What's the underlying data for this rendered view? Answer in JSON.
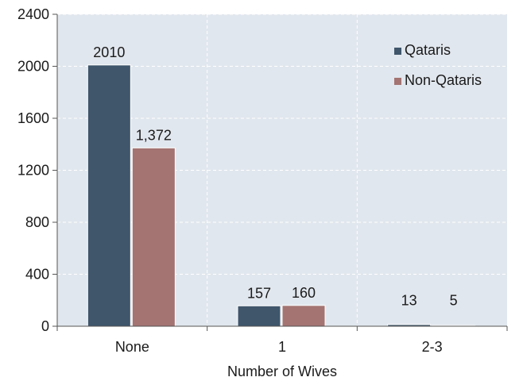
{
  "chart_data": {
    "type": "bar",
    "categories": [
      "None",
      "1",
      "2-3"
    ],
    "series": [
      {
        "name": "Qataris",
        "values": [
          2010,
          157,
          13
        ],
        "labels": [
          "2010",
          "157",
          "13"
        ],
        "color": "#3f566b"
      },
      {
        "name": "Non-Qataris",
        "values": [
          1372,
          160,
          5
        ],
        "labels": [
          "1,372",
          "160",
          "5"
        ],
        "color": "#a37472"
      }
    ],
    "xlabel": "Number of Wives",
    "ylabel": "",
    "ylim": [
      0,
      2400
    ],
    "yticks": [
      0,
      400,
      800,
      1200,
      1600,
      2000,
      2400
    ],
    "grid": true,
    "legend_position": "top-right",
    "plot_background": "#e1e7ee",
    "grid_color": "#ffffff"
  }
}
